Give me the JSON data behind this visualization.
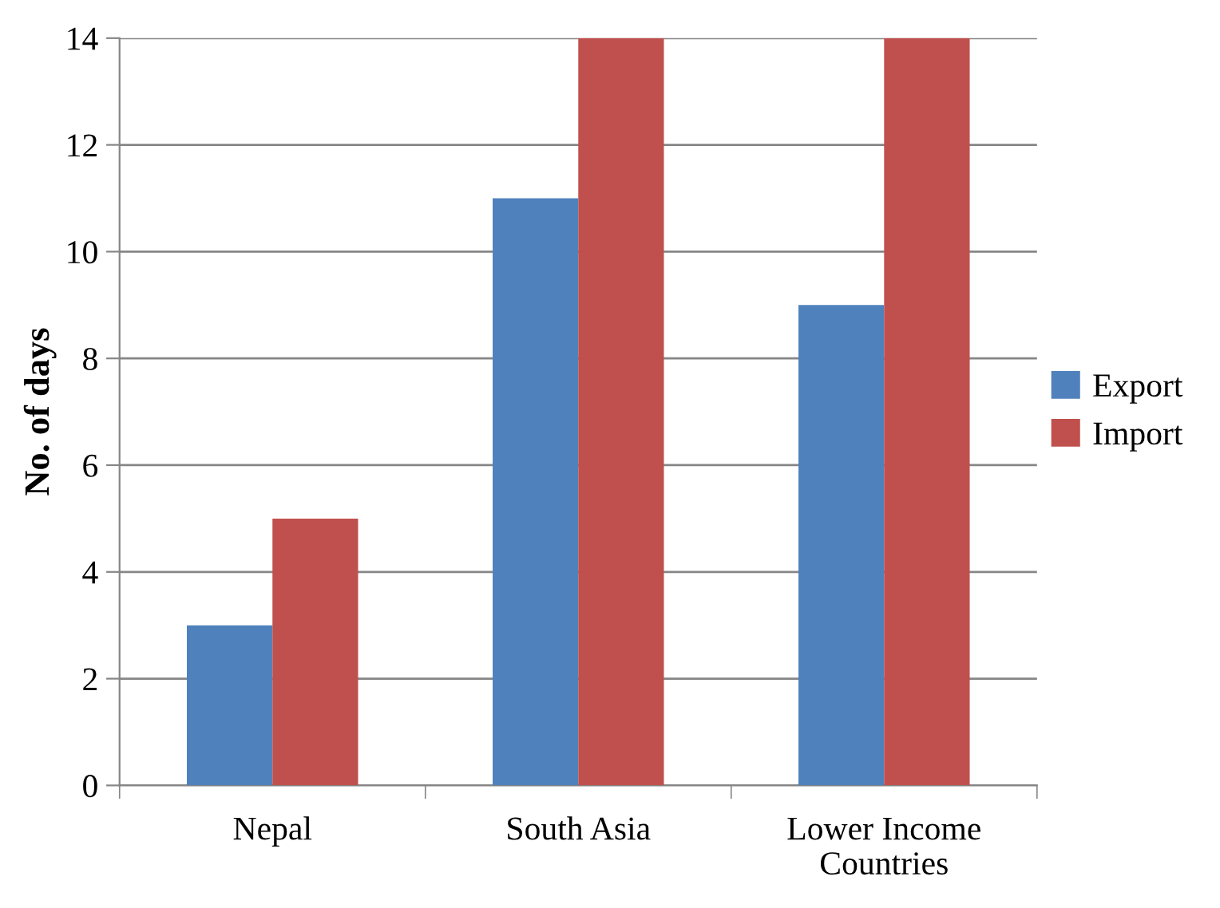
{
  "chart_data": {
    "type": "bar",
    "ylabel": "No. of days",
    "categories": [
      "Nepal",
      "South Asia",
      "Lower Income\nCountries"
    ],
    "series": [
      {
        "name": "Export",
        "color": "#4f81bd",
        "values": [
          3,
          11,
          9
        ]
      },
      {
        "name": "Import",
        "color": "#c0504d",
        "values": [
          5,
          14,
          14
        ]
      }
    ],
    "ylim": [
      0,
      14
    ],
    "yticks": [
      0,
      2,
      4,
      6,
      8,
      10,
      12,
      14
    ],
    "grid": "y",
    "legend": "right"
  }
}
